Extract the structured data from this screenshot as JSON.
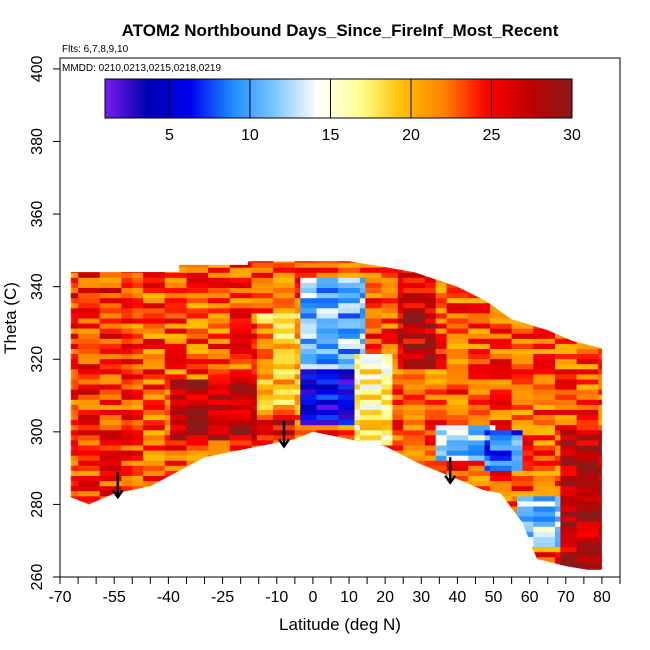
{
  "chart_data": {
    "type": "heatmap",
    "title": "ATOM2 Northbound Days_Since_FireInf_Most_Recent",
    "flights_note": "Flts: 6,7,8,9,10",
    "dates_note": "MMDD: 0210,0213,0215,0218,0219",
    "xlabel": "Latitude (deg N)",
    "ylabel": "Theta (C)",
    "xlim": [
      -70,
      85
    ],
    "ylim": [
      260,
      403
    ],
    "x_ticks_labeled": [
      -70,
      -55,
      -40,
      -25,
      -10,
      0,
      10,
      20,
      30,
      40,
      50,
      60,
      70,
      80
    ],
    "x_ticks_minor": [
      -65,
      -60,
      -50,
      -45,
      -35,
      -30,
      -20,
      -15,
      -5,
      5,
      15,
      25,
      35,
      45,
      55,
      65,
      75,
      85
    ],
    "y_ticks": [
      260,
      280,
      300,
      320,
      340,
      360,
      380,
      400
    ],
    "colorbar": {
      "range": [
        1,
        30
      ],
      "ticks": [
        5,
        10,
        15,
        20,
        25,
        30
      ],
      "colors": [
        "#7a1cf0",
        "#0000b0",
        "#0000ee",
        "#1e8cff",
        "#7cc6ff",
        "#ffffff",
        "#ffff90",
        "#ffc000",
        "#ff8000",
        "#ff0000",
        "#c00000",
        "#8b1a1a"
      ]
    },
    "coverage_envelope": {
      "upper_theta": [
        [
          -67,
          344
        ],
        [
          -37,
          344
        ],
        [
          -37,
          346
        ],
        [
          -18,
          346
        ],
        [
          -18,
          347
        ],
        [
          10,
          347
        ],
        [
          28,
          344
        ],
        [
          40,
          340
        ],
        [
          48,
          336
        ],
        [
          55,
          331
        ],
        [
          65,
          328
        ],
        [
          72,
          325
        ],
        [
          80,
          323
        ]
      ],
      "lower_theta": [
        [
          -67,
          282
        ],
        [
          -62,
          280
        ],
        [
          -55,
          283
        ],
        [
          -45,
          285
        ],
        [
          -30,
          293
        ],
        [
          -15,
          296
        ],
        [
          -5,
          298
        ],
        [
          0,
          300
        ],
        [
          10,
          298
        ],
        [
          20,
          296
        ],
        [
          30,
          291
        ],
        [
          40,
          287
        ],
        [
          47,
          284
        ],
        [
          52,
          283
        ],
        [
          58,
          275
        ],
        [
          62,
          265
        ],
        [
          70,
          263
        ],
        [
          76,
          262
        ],
        [
          80,
          262
        ]
      ]
    },
    "regions": [
      {
        "lat": [
          -67,
          80
        ],
        "theta": [
          260,
          347
        ],
        "days": 23
      },
      {
        "lat": [
          -67,
          -50
        ],
        "theta": [
          282,
          344
        ],
        "days": 24
      },
      {
        "lat": [
          -40,
          -15
        ],
        "theta": [
          298,
          315
        ],
        "days": 28
      },
      {
        "lat": [
          -15,
          -3
        ],
        "theta": [
          305,
          333
        ],
        "days": 20
      },
      {
        "lat": [
          -15,
          -5
        ],
        "theta": [
          299,
          304
        ],
        "days": 27
      },
      {
        "lat": [
          -3,
          12
        ],
        "theta": [
          302,
          318
        ],
        "days": 5
      },
      {
        "lat": [
          -3,
          14
        ],
        "theta": [
          318,
          342
        ],
        "days": 11
      },
      {
        "lat": [
          12,
          22
        ],
        "theta": [
          296,
          322
        ],
        "days": 17
      },
      {
        "lat": [
          24,
          34
        ],
        "theta": [
          318,
          344
        ],
        "days": 27
      },
      {
        "lat": [
          34,
          50
        ],
        "theta": [
          292,
          302
        ],
        "days": 12
      },
      {
        "lat": [
          48,
          58
        ],
        "theta": [
          290,
          300
        ],
        "days": 9
      },
      {
        "lat": [
          56,
          68
        ],
        "theta": [
          268,
          282
        ],
        "days": 12
      },
      {
        "lat": [
          68,
          80
        ],
        "theta": [
          262,
          300
        ],
        "days": 28
      }
    ],
    "arrows": [
      {
        "lat": -54,
        "theta_start": 289,
        "theta_end": 282
      },
      {
        "lat": -8,
        "theta_start": 303,
        "theta_end": 296
      },
      {
        "lat": 38,
        "theta_start": 293,
        "theta_end": 286
      }
    ]
  }
}
